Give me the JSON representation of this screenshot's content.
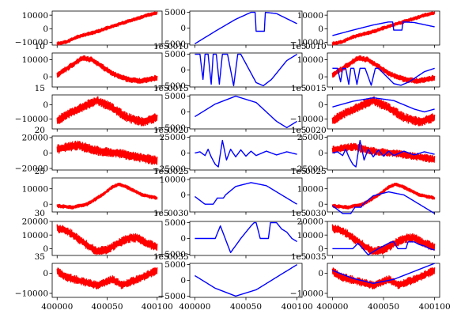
{
  "chart_data": {
    "type": "line",
    "layout": {
      "rows": 7,
      "cols": 3
    },
    "colors": {
      "left_series": "#ff0000",
      "middle_series": "#0000ff"
    },
    "x_range": [
      400000,
      400100
    ],
    "x_ticks": [
      400000,
      400050,
      400100
    ],
    "x_tick_labels": [
      "400000",
      "400050",
      "400100"
    ],
    "overlapping_offset_labels": [
      "1e5",
      "1e5",
      "1e5",
      "1e5",
      "1e5",
      "1e5"
    ],
    "left_clipped_labels": [
      "10",
      "15",
      "20",
      "25",
      "30",
      "35"
    ],
    "center_clipped_labels": [
      "0010",
      "0015",
      "0020",
      "0025",
      "0030",
      "0035"
    ],
    "right_clipped_labels": [
      "0010",
      "0015",
      "0020",
      "0025",
      "0030",
      "0035"
    ],
    "rows": [
      {
        "left": {
          "ylim": [
            -12000,
            13000
          ],
          "yticks": [
            -10000,
            0,
            10000
          ],
          "trend": [
            [
              0,
              -11000
            ],
            [
              10,
              -9500
            ],
            [
              20,
              -6000
            ],
            [
              40,
              -2000
            ],
            [
              60,
              3000
            ],
            [
              80,
              7500
            ],
            [
              90,
              10000
            ],
            [
              100,
              11500
            ]
          ],
          "noise": 1400
        },
        "middle": {
          "ylim": [
            -5400,
            5400
          ],
          "yticks": [
            -5000,
            0,
            5000
          ],
          "keypoints": [
            [
              0,
              -5000
            ],
            [
              20,
              -1000
            ],
            [
              40,
              2800
            ],
            [
              55,
              5000
            ],
            [
              59,
              5000
            ],
            [
              60,
              -1000
            ],
            [
              68,
              -1000
            ],
            [
              69,
              5000
            ],
            [
              80,
              4600
            ],
            [
              100,
              1400
            ]
          ]
        },
        "right": {
          "ylim": [
            -12000,
            13000
          ],
          "yticks": [
            -10000,
            0,
            10000
          ]
        }
      },
      {
        "left": {
          "ylim": [
            -6000,
            14000
          ],
          "yticks": [
            0,
            10000
          ],
          "trend": [
            [
              0,
              1000
            ],
            [
              10,
              5000
            ],
            [
              25,
              11000
            ],
            [
              35,
              10000
            ],
            [
              45,
              6000
            ],
            [
              55,
              2000
            ],
            [
              65,
              -500
            ],
            [
              75,
              -2000
            ],
            [
              85,
              -2500
            ],
            [
              100,
              -500
            ]
          ],
          "noise": 1800
        },
        "middle": {
          "ylim": [
            -5400,
            5400
          ],
          "yticks": [
            -5000,
            0,
            5000
          ],
          "keypoints": [
            [
              0,
              5000
            ],
            [
              5,
              5000
            ],
            [
              8,
              -3000
            ],
            [
              10,
              5000
            ],
            [
              13,
              5000
            ],
            [
              16,
              -4500
            ],
            [
              18,
              5000
            ],
            [
              21,
              5000
            ],
            [
              24,
              -4500
            ],
            [
              27,
              5000
            ],
            [
              32,
              5000
            ],
            [
              38,
              -5000
            ],
            [
              42,
              5000
            ],
            [
              45,
              5000
            ],
            [
              50,
              2000
            ],
            [
              60,
              -4000
            ],
            [
              67,
              -5000
            ],
            [
              75,
              -3000
            ],
            [
              90,
              3000
            ],
            [
              100,
              5000
            ]
          ]
        },
        "right": {
          "ylim": [
            -6000,
            14000
          ],
          "yticks": [
            0,
            10000
          ]
        }
      },
      {
        "left": {
          "ylim": [
            -17000,
            7000
          ],
          "yticks": [
            -10000,
            0
          ],
          "trend": [
            [
              0,
              -11000
            ],
            [
              15,
              -5000
            ],
            [
              30,
              0
            ],
            [
              40,
              3000
            ],
            [
              55,
              -2000
            ],
            [
              70,
              -9000
            ],
            [
              85,
              -12000
            ],
            [
              100,
              -9000
            ]
          ],
          "noise": 3500
        },
        "middle": {
          "ylim": [
            -5400,
            5400
          ],
          "yticks": [
            -5000,
            0,
            5000
          ],
          "keypoints": [
            [
              0,
              -1500
            ],
            [
              20,
              2500
            ],
            [
              40,
              5000
            ],
            [
              60,
              3000
            ],
            [
              80,
              -3000
            ],
            [
              90,
              -5000
            ],
            [
              100,
              -3000
            ]
          ]
        },
        "right": {
          "ylim": [
            -17000,
            7000
          ],
          "yticks": [
            -10000,
            0
          ]
        }
      },
      {
        "left": {
          "ylim": [
            -22000,
            22000
          ],
          "yticks": [
            -20000,
            0,
            20000
          ],
          "trend": [
            [
              0,
              5000
            ],
            [
              20,
              10000
            ],
            [
              40,
              3000
            ],
            [
              60,
              0
            ],
            [
              80,
              -5000
            ],
            [
              100,
              -10000
            ]
          ],
          "noise": 6500
        },
        "middle": {
          "ylim": [
            -27000,
            27000
          ],
          "yticks": [
            -25000,
            0,
            25000
          ],
          "keypoints": [
            [
              0,
              0
            ],
            [
              5,
              2000
            ],
            [
              10,
              -4000
            ],
            [
              13,
              6000
            ],
            [
              16,
              -6000
            ],
            [
              20,
              -18000
            ],
            [
              23,
              -22000
            ],
            [
              27,
              20000
            ],
            [
              31,
              -11000
            ],
            [
              35,
              6000
            ],
            [
              40,
              -6000
            ],
            [
              45,
              5000
            ],
            [
              50,
              -5000
            ],
            [
              55,
              3000
            ],
            [
              60,
              -4000
            ],
            [
              70,
              3000
            ],
            [
              80,
              -3000
            ],
            [
              90,
              2000
            ],
            [
              100,
              -2000
            ]
          ]
        },
        "right": {
          "ylim": [
            -27000,
            27000
          ],
          "yticks": [
            -25000,
            0,
            25000
          ]
        }
      },
      {
        "left": {
          "ylim": [
            -5000,
            17000
          ],
          "yticks": [
            0,
            10000
          ],
          "trend": [
            [
              0,
              -1000
            ],
            [
              15,
              -2000
            ],
            [
              30,
              0
            ],
            [
              45,
              6000
            ],
            [
              55,
              11000
            ],
            [
              62,
              13000
            ],
            [
              70,
              11000
            ],
            [
              85,
              6000
            ],
            [
              100,
              4000
            ]
          ],
          "noise": 1200
        },
        "middle": {
          "ylim": [
            -11000,
            11000
          ],
          "yticks": [
            0,
            10000
          ],
          "keypoints": [
            [
              0,
              -1000
            ],
            [
              10,
              -6000
            ],
            [
              18,
              -6000
            ],
            [
              20,
              -4000
            ],
            [
              22,
              -2000
            ],
            [
              28,
              -2000
            ],
            [
              30,
              0
            ],
            [
              40,
              5500
            ],
            [
              55,
              8000
            ],
            [
              70,
              6000
            ],
            [
              85,
              0
            ],
            [
              100,
              -6000
            ]
          ]
        },
        "right": {
          "ylim": [
            -5000,
            17000
          ],
          "yticks": [
            0,
            10000
          ]
        }
      },
      {
        "left": {
          "ylim": [
            -5000,
            20000
          ],
          "yticks": [
            0,
            10000,
            20000
          ],
          "trend": [
            [
              0,
              15000
            ],
            [
              10,
              13000
            ],
            [
              20,
              8000
            ],
            [
              30,
              2500
            ],
            [
              40,
              -2000
            ],
            [
              50,
              -1000
            ],
            [
              60,
              3500
            ],
            [
              70,
              7500
            ],
            [
              80,
              8000
            ],
            [
              90,
              4000
            ],
            [
              100,
              1000
            ]
          ],
          "noise": 3500
        },
        "middle": {
          "ylim": [
            -5400,
            5400
          ],
          "yticks": [
            -5000,
            0,
            5000
          ],
          "keypoints": [
            [
              0,
              0
            ],
            [
              20,
              0
            ],
            [
              25,
              4000
            ],
            [
              35,
              -4500
            ],
            [
              45,
              0
            ],
            [
              55,
              4000
            ],
            [
              58,
              5000
            ],
            [
              60,
              5000
            ],
            [
              64,
              0
            ],
            [
              72,
              0
            ],
            [
              74,
              5000
            ],
            [
              80,
              5000
            ],
            [
              85,
              3000
            ],
            [
              90,
              2000
            ],
            [
              95,
              0
            ],
            [
              100,
              -1000
            ]
          ]
        },
        "right": {
          "ylim": [
            -5000,
            20000
          ],
          "yticks": [
            0,
            10000,
            20000
          ]
        }
      },
      {
        "left": {
          "ylim": [
            -12000,
            5000
          ],
          "yticks": [
            -10000,
            0
          ],
          "trend": [
            [
              0,
              1000
            ],
            [
              10,
              -2000
            ],
            [
              25,
              -4000
            ],
            [
              40,
              -6000
            ],
            [
              55,
              -3000
            ],
            [
              65,
              -6000
            ],
            [
              80,
              -3000
            ],
            [
              100,
              1500
            ]
          ],
          "noise": 2200
        },
        "middle": {
          "ylim": [
            -5400,
            5400
          ],
          "yticks": [
            -5000,
            0,
            5000
          ],
          "keypoints": [
            [
              0,
              1500
            ],
            [
              20,
              -2500
            ],
            [
              40,
              -5000
            ],
            [
              60,
              -3000
            ],
            [
              80,
              1000
            ],
            [
              100,
              5000
            ]
          ]
        },
        "right": {
          "ylim": [
            -12000,
            5000
          ],
          "yticks": [
            -10000,
            0
          ]
        }
      }
    ]
  }
}
